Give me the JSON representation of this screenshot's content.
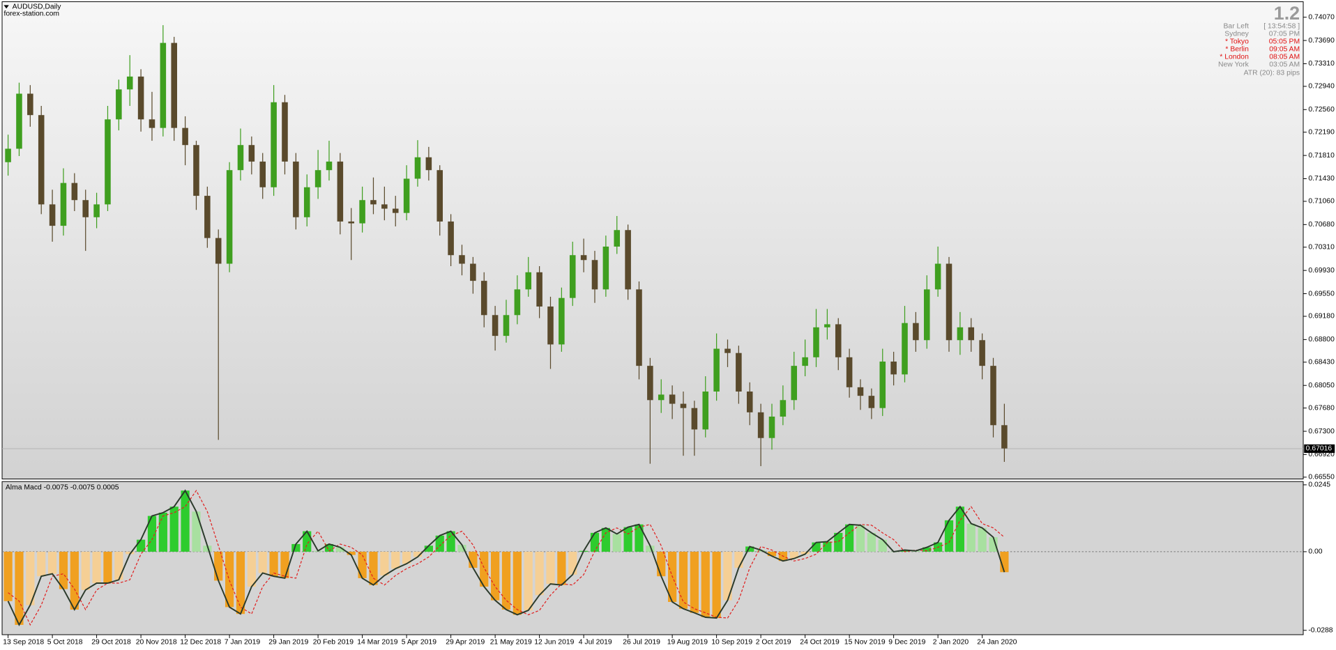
{
  "header": {
    "symbol": "AUDUSD,Daily",
    "watermark": "forex-station.com"
  },
  "info_panel": {
    "version": "1.2",
    "rows": [
      {
        "name": "Bar Left",
        "time": "[ 13:54:58 ]",
        "open": false
      },
      {
        "name": "Sydney",
        "time": "07:05 PM",
        "open": false
      },
      {
        "name": "* Tokyo",
        "time": "05:05 PM",
        "open": true
      },
      {
        "name": "* Berlin",
        "time": "09:05 AM",
        "open": true
      },
      {
        "name": "* London",
        "time": "08:05 AM",
        "open": true
      },
      {
        "name": "New York",
        "time": "03:05 AM",
        "open": false
      }
    ],
    "atr": "ATR (20): 83 pips"
  },
  "chart_data": [
    {
      "type": "candlestick",
      "up_color": "#3f9f1f",
      "down_color": "#5a4a2c",
      "xlim": [
        -0.54,
        117
      ],
      "ylim": [
        0.6652,
        0.7431
      ],
      "xticks": [
        {
          "value": 0,
          "label": "13 Sep 2018"
        },
        {
          "value": 4,
          "label": "5 Oct 2018"
        },
        {
          "value": 8,
          "label": "29 Oct 2018"
        },
        {
          "value": 12,
          "label": "20 Nov 2018"
        },
        {
          "value": 16,
          "label": "12 Dec 2018"
        },
        {
          "value": 20,
          "label": "7 Jan 2019"
        },
        {
          "value": 24,
          "label": "29 Jan 2019"
        },
        {
          "value": 28,
          "label": "20 Feb 2019"
        },
        {
          "value": 32,
          "label": "14 Mar 2019"
        },
        {
          "value": 36,
          "label": "5 Apr 2019"
        },
        {
          "value": 40,
          "label": "29 Apr 2019"
        },
        {
          "value": 44,
          "label": "21 May 2019"
        },
        {
          "value": 48,
          "label": "12 Jun 2019"
        },
        {
          "value": 52,
          "label": "4 Jul 2019"
        },
        {
          "value": 56,
          "label": "26 Jul 2019"
        },
        {
          "value": 60,
          "label": "19 Aug 2019"
        },
        {
          "value": 64,
          "label": "10 Sep 2019"
        },
        {
          "value": 68,
          "label": "2 Oct 2019"
        },
        {
          "value": 72,
          "label": "24 Oct 2019"
        },
        {
          "value": 76,
          "label": "15 Nov 2019"
        },
        {
          "value": 80,
          "label": "9 Dec 2019"
        },
        {
          "value": 84,
          "label": "2 Jan 2020"
        },
        {
          "value": 88,
          "label": "24 Jan 2020"
        }
      ],
      "yticks": [
        {
          "value": 0.7407,
          "label": "0.74070"
        },
        {
          "value": 0.7369,
          "label": "0.73690"
        },
        {
          "value": 0.7331,
          "label": "0.73310"
        },
        {
          "value": 0.7294,
          "label": "0.72940"
        },
        {
          "value": 0.7256,
          "label": "0.72560"
        },
        {
          "value": 0.7219,
          "label": "0.72190"
        },
        {
          "value": 0.7181,
          "label": "0.71810"
        },
        {
          "value": 0.7143,
          "label": "0.71430"
        },
        {
          "value": 0.7106,
          "label": "0.71060"
        },
        {
          "value": 0.7068,
          "label": "0.70680"
        },
        {
          "value": 0.7031,
          "label": "0.70310"
        },
        {
          "value": 0.6993,
          "label": "0.69930"
        },
        {
          "value": 0.6955,
          "label": "0.69550"
        },
        {
          "value": 0.6918,
          "label": "0.69180"
        },
        {
          "value": 0.688,
          "label": "0.68800"
        },
        {
          "value": 0.6843,
          "label": "0.68430"
        },
        {
          "value": 0.6805,
          "label": "0.68050"
        },
        {
          "value": 0.6768,
          "label": "0.67680"
        },
        {
          "value": 0.673,
          "label": "0.67300"
        },
        {
          "value": 0.6692,
          "label": "0.66920"
        },
        {
          "value": 0.6655,
          "label": "0.66550"
        }
      ],
      "current_price": {
        "value": 0.67016,
        "label": "0.67016"
      },
      "open": [
        0.717,
        0.7192,
        0.7282,
        0.7247,
        0.7101,
        0.7066,
        0.7136,
        0.7108,
        0.708,
        0.7101,
        0.724,
        0.7289,
        0.731,
        0.724,
        0.7226,
        0.7365,
        0.7226,
        0.7198,
        0.7115,
        0.7046,
        0.7004,
        0.7157,
        0.7198,
        0.7171,
        0.7129,
        0.7268,
        0.7171,
        0.708,
        0.7129,
        0.7157,
        0.7171,
        0.7073,
        0.707,
        0.7108,
        0.7101,
        0.7094,
        0.7087,
        0.7143,
        0.7178,
        0.7157,
        0.7073,
        0.7018,
        0.7004,
        0.6976,
        0.692,
        0.6886,
        0.692,
        0.6962,
        0.699,
        0.6934,
        0.6872,
        0.6948,
        0.7018,
        0.701,
        0.6962,
        0.7032,
        0.7059,
        0.6962,
        0.6837,
        0.6781,
        0.679,
        0.6775,
        0.6768,
        0.6733,
        0.6795,
        0.6865,
        0.6858,
        0.6795,
        0.6761,
        0.6719,
        0.6754,
        0.6781,
        0.6837,
        0.6851,
        0.69,
        0.6905,
        0.6851,
        0.6802,
        0.6788,
        0.6768,
        0.6844,
        0.6823,
        0.6907,
        0.6879,
        0.6962,
        0.7004,
        0.6879,
        0.69,
        0.6879,
        0.6837,
        0.674
      ],
      "high": [
        0.7215,
        0.73,
        0.7296,
        0.7262,
        0.7125,
        0.716,
        0.7152,
        0.7125,
        0.712,
        0.7262,
        0.7305,
        0.7345,
        0.7322,
        0.7285,
        0.7394,
        0.7375,
        0.7245,
        0.7205,
        0.713,
        0.706,
        0.717,
        0.7225,
        0.7212,
        0.7185,
        0.7296,
        0.728,
        0.7185,
        0.715,
        0.719,
        0.7205,
        0.7185,
        0.7095,
        0.713,
        0.7145,
        0.713,
        0.7115,
        0.7165,
        0.7206,
        0.7195,
        0.7165,
        0.7085,
        0.7035,
        0.7015,
        0.699,
        0.6935,
        0.6945,
        0.6985,
        0.7015,
        0.7,
        0.695,
        0.6965,
        0.704,
        0.7045,
        0.7025,
        0.705,
        0.7082,
        0.7068,
        0.6975,
        0.685,
        0.6815,
        0.6805,
        0.6795,
        0.678,
        0.682,
        0.689,
        0.688,
        0.687,
        0.681,
        0.6775,
        0.6775,
        0.6805,
        0.686,
        0.688,
        0.693,
        0.693,
        0.6915,
        0.6865,
        0.6815,
        0.68,
        0.6865,
        0.686,
        0.6935,
        0.6925,
        0.6985,
        0.7032,
        0.7015,
        0.6925,
        0.6915,
        0.689,
        0.685,
        0.6775
      ],
      "low": [
        0.7148,
        0.718,
        0.7228,
        0.7085,
        0.704,
        0.705,
        0.709,
        0.7025,
        0.7062,
        0.709,
        0.7222,
        0.7262,
        0.722,
        0.7205,
        0.7212,
        0.7205,
        0.7165,
        0.7092,
        0.703,
        0.6716,
        0.699,
        0.714,
        0.715,
        0.711,
        0.7115,
        0.715,
        0.706,
        0.7065,
        0.711,
        0.714,
        0.7052,
        0.701,
        0.7055,
        0.7085,
        0.7075,
        0.7065,
        0.7075,
        0.713,
        0.714,
        0.705,
        0.7,
        0.6985,
        0.6955,
        0.69,
        0.6862,
        0.6875,
        0.6905,
        0.695,
        0.6915,
        0.6832,
        0.686,
        0.6935,
        0.699,
        0.694,
        0.695,
        0.702,
        0.6945,
        0.6815,
        0.6677,
        0.676,
        0.675,
        0.669,
        0.669,
        0.672,
        0.678,
        0.6835,
        0.6775,
        0.674,
        0.6673,
        0.67,
        0.674,
        0.6765,
        0.682,
        0.6835,
        0.688,
        0.683,
        0.6785,
        0.6765,
        0.675,
        0.6755,
        0.6805,
        0.681,
        0.686,
        0.6865,
        0.695,
        0.686,
        0.6855,
        0.686,
        0.6815,
        0.672,
        0.668
      ],
      "close": [
        0.7192,
        0.7282,
        0.7247,
        0.7101,
        0.7066,
        0.7136,
        0.7108,
        0.708,
        0.7101,
        0.724,
        0.7289,
        0.731,
        0.724,
        0.7226,
        0.7365,
        0.7226,
        0.7198,
        0.7115,
        0.7046,
        0.7004,
        0.7157,
        0.7198,
        0.7171,
        0.7129,
        0.7268,
        0.7171,
        0.708,
        0.7129,
        0.7157,
        0.7171,
        0.7073,
        0.707,
        0.7108,
        0.7101,
        0.7094,
        0.7087,
        0.7143,
        0.7178,
        0.7157,
        0.7073,
        0.7018,
        0.7004,
        0.6976,
        0.692,
        0.6886,
        0.692,
        0.6962,
        0.699,
        0.6934,
        0.6872,
        0.6948,
        0.7018,
        0.701,
        0.6962,
        0.7032,
        0.7059,
        0.6962,
        0.6837,
        0.6781,
        0.679,
        0.6775,
        0.6768,
        0.6733,
        0.6795,
        0.6865,
        0.6858,
        0.6795,
        0.6761,
        0.6719,
        0.6754,
        0.6781,
        0.6837,
        0.6851,
        0.69,
        0.6905,
        0.6851,
        0.6802,
        0.6788,
        0.6768,
        0.6844,
        0.6823,
        0.6907,
        0.6879,
        0.6962,
        0.7004,
        0.6879,
        0.69,
        0.6879,
        0.6837,
        0.674,
        0.6702
      ]
    },
    {
      "type": "macd",
      "title": "Alma Macd -0.0075 -0.0075 0.0005",
      "xlim": [
        -0.54,
        117
      ],
      "ylim": [
        -0.0304,
        0.0257
      ],
      "yticks": [
        0.0245,
        {
          "value": 0,
          "label": "0.00"
        },
        -0.0288
      ],
      "zero_line": true,
      "line_color": "#2b3a2b",
      "signal_color": "#e02020",
      "colors": {
        "up_strong": "#2ecc2e",
        "up_weak": "#a8e0a0",
        "down_strong": "#f0a020",
        "down_weak": "#f5cf95"
      },
      "values": [
        -0.0181,
        -0.0268,
        -0.0196,
        -0.009,
        -0.0081,
        -0.0137,
        -0.0212,
        -0.014,
        -0.0115,
        -0.0115,
        -0.0103,
        -0.0009,
        0.0044,
        0.0131,
        0.0143,
        0.0165,
        0.0224,
        0.0147,
        0.0022,
        -0.0106,
        -0.0203,
        -0.0228,
        -0.0128,
        -0.0078,
        -0.009,
        -0.0097,
        0.0028,
        0.0075,
        0.0003,
        0.0028,
        0.0016,
        -0.0012,
        -0.0097,
        -0.0122,
        -0.0087,
        -0.0062,
        -0.0044,
        -0.0019,
        0.0022,
        0.0059,
        0.0075,
        0.0025,
        -0.0059,
        -0.0128,
        -0.0178,
        -0.0212,
        -0.0231,
        -0.0215,
        -0.0159,
        -0.0118,
        -0.0122,
        -0.0084,
        0.0003,
        0.0069,
        0.0087,
        0.0065,
        0.009,
        0.01,
        0.0022,
        -0.009,
        -0.0184,
        -0.0209,
        -0.0224,
        -0.024,
        -0.0243,
        -0.0178,
        -0.0059,
        0.0019,
        0.0006,
        -0.0016,
        -0.0034,
        -0.0025,
        -0.0009,
        0.0034,
        0.0037,
        0.0069,
        0.01,
        0.0097,
        0.0069,
        0.0044,
        0,
        0.0006,
        0.0003,
        0.0016,
        0.0034,
        0.0115,
        0.0165,
        0.0103,
        0.0087,
        0.0053,
        -0.0075
      ],
      "signal": [
        -0.015,
        -0.0181,
        -0.0268,
        -0.0196,
        -0.009,
        -0.0081,
        -0.0137,
        -0.0212,
        -0.014,
        -0.0115,
        -0.0115,
        -0.0103,
        -0.0009,
        0.0044,
        0.0131,
        0.0143,
        0.0165,
        0.0224,
        0.0147,
        0.0022,
        -0.0106,
        -0.0203,
        -0.0228,
        -0.0128,
        -0.0078,
        -0.009,
        -0.0097,
        0.0028,
        0.0075,
        0.0003,
        0.0028,
        0.0016,
        -0.0012,
        -0.0097,
        -0.0122,
        -0.0087,
        -0.0062,
        -0.0044,
        -0.0019,
        0.0022,
        0.0059,
        0.0075,
        0.0025,
        -0.0059,
        -0.0128,
        -0.0178,
        -0.0212,
        -0.0231,
        -0.0215,
        -0.0159,
        -0.0118,
        -0.0122,
        -0.0084,
        0.0003,
        0.0069,
        0.0087,
        0.0065,
        0.009,
        0.01,
        0.0022,
        -0.009,
        -0.0184,
        -0.0209,
        -0.0224,
        -0.024,
        -0.0243,
        -0.0178,
        -0.0059,
        0.0019,
        0.0006,
        -0.0016,
        -0.0034,
        -0.0025,
        -0.0009,
        0.0034,
        0.0037,
        0.0069,
        0.01,
        0.0097,
        0.0069,
        0.0044,
        0,
        0.0006,
        0.0003,
        0.0016,
        0.0034,
        0.0115,
        0.0165,
        0.0103,
        0.0087,
        0.0053
      ]
    }
  ]
}
